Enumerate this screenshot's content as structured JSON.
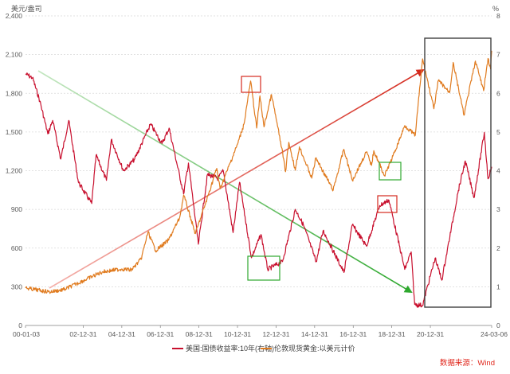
{
  "chart_data": {
    "type": "line",
    "left_unit": "美元/盎司",
    "right_unit": "%",
    "y_left": {
      "min": 0,
      "max": 2400,
      "ticks": [
        "0",
        "300",
        "600",
        "900",
        "1,200",
        "1,500",
        "1,800",
        "2,100",
        "2,400"
      ]
    },
    "y_right": {
      "min": 0,
      "max": 8,
      "ticks": [
        "0",
        "1",
        "2",
        "3",
        "4",
        "5",
        "6",
        "7",
        "8"
      ]
    },
    "x_range": [
      "2000-01-03",
      "2024-03-06"
    ],
    "x_ticks": [
      {
        "label": "00-01-03",
        "date": "2000-01-03"
      },
      {
        "label": "02-12-31",
        "date": "2002-12-31"
      },
      {
        "label": "04-12-31",
        "date": "2004-12-31"
      },
      {
        "label": "06-12-31",
        "date": "2006-12-31"
      },
      {
        "label": "08-12-31",
        "date": "2008-12-31"
      },
      {
        "label": "10-12-31",
        "date": "2010-12-31"
      },
      {
        "label": "12-12-31",
        "date": "2012-12-31"
      },
      {
        "label": "14-12-31",
        "date": "2014-12-31"
      },
      {
        "label": "16-12-31",
        "date": "2016-12-31"
      },
      {
        "label": "18-12-31",
        "date": "2018-12-31"
      },
      {
        "label": "20-12-31",
        "date": "2020-12-31"
      },
      {
        "label": "24-03-06",
        "date": "2024-03-06"
      }
    ],
    "gridlines": "horizontal",
    "legend_position": "bottom",
    "series": [
      {
        "name": "美国:国债收益率:10年(右轴)",
        "axis": "right",
        "color": "#c8102e",
        "points": [
          [
            "2000-01-03",
            6.5
          ],
          [
            "2000-05-15",
            6.4
          ],
          [
            "2000-10-01",
            5.8
          ],
          [
            "2001-03-01",
            4.95
          ],
          [
            "2001-06-01",
            5.3
          ],
          [
            "2001-11-01",
            4.3
          ],
          [
            "2002-04-01",
            5.3
          ],
          [
            "2002-10-01",
            3.7
          ],
          [
            "2003-06-10",
            3.15
          ],
          [
            "2003-09-01",
            4.4
          ],
          [
            "2004-03-15",
            3.75
          ],
          [
            "2004-06-15",
            4.8
          ],
          [
            "2005-02-01",
            4.0
          ],
          [
            "2005-09-01",
            4.3
          ],
          [
            "2006-06-28",
            5.2
          ],
          [
            "2007-02-01",
            4.7
          ],
          [
            "2007-06-15",
            5.1
          ],
          [
            "2008-03-15",
            3.4
          ],
          [
            "2008-06-15",
            4.2
          ],
          [
            "2008-12-20",
            2.1
          ],
          [
            "2009-06-10",
            3.9
          ],
          [
            "2009-12-31",
            3.8
          ],
          [
            "2010-04-05",
            4.0
          ],
          [
            "2010-10-08",
            2.4
          ],
          [
            "2011-02-08",
            3.7
          ],
          [
            "2011-09-22",
            1.75
          ],
          [
            "2012-03-20",
            2.35
          ],
          [
            "2012-07-25",
            1.45
          ],
          [
            "2013-05-01",
            1.65
          ],
          [
            "2013-12-31",
            3.0
          ],
          [
            "2014-06-01",
            2.6
          ],
          [
            "2015-01-30",
            1.65
          ],
          [
            "2015-06-10",
            2.45
          ],
          [
            "2016-07-08",
            1.37
          ],
          [
            "2016-12-15",
            2.6
          ],
          [
            "2017-09-08",
            2.05
          ],
          [
            "2018-05-17",
            3.1
          ],
          [
            "2018-11-08",
            3.24
          ],
          [
            "2019-09-03",
            1.45
          ],
          [
            "2020-01-02",
            1.9
          ],
          [
            "2020-03-09",
            0.54
          ],
          [
            "2020-08-04",
            0.52
          ],
          [
            "2021-03-31",
            1.74
          ],
          [
            "2021-08-04",
            1.17
          ],
          [
            "2022-06-14",
            3.49
          ],
          [
            "2022-10-24",
            4.25
          ],
          [
            "2023-04-06",
            3.3
          ],
          [
            "2023-10-19",
            4.99
          ],
          [
            "2023-12-27",
            3.79
          ],
          [
            "2024-03-06",
            4.1
          ]
        ]
      },
      {
        "name": "伦敦现货黄金:以美元计价",
        "axis": "left",
        "color": "#e07b1f",
        "points": [
          [
            "2000-01-03",
            290
          ],
          [
            "2001-04-01",
            260
          ],
          [
            "2001-12-31",
            278
          ],
          [
            "2002-12-31",
            347
          ],
          [
            "2003-12-31",
            416
          ],
          [
            "2004-12-31",
            438
          ],
          [
            "2005-06-30",
            430
          ],
          [
            "2005-12-30",
            513
          ],
          [
            "2006-05-12",
            725
          ],
          [
            "2006-10-01",
            580
          ],
          [
            "2007-06-01",
            660
          ],
          [
            "2007-12-31",
            834
          ],
          [
            "2008-03-17",
            1011
          ],
          [
            "2008-10-24",
            712
          ],
          [
            "2009-06-01",
            980
          ],
          [
            "2009-12-03",
            1218
          ],
          [
            "2010-02-05",
            1060
          ],
          [
            "2010-12-31",
            1405
          ],
          [
            "2011-05-02",
            1560
          ],
          [
            "2011-09-06",
            1895
          ],
          [
            "2011-12-29",
            1531
          ],
          [
            "2012-02-29",
            1780
          ],
          [
            "2012-05-16",
            1540
          ],
          [
            "2012-10-05",
            1790
          ],
          [
            "2013-04-15",
            1380
          ],
          [
            "2013-06-28",
            1192
          ],
          [
            "2013-08-28",
            1420
          ],
          [
            "2013-12-31",
            1204
          ],
          [
            "2014-03-17",
            1385
          ],
          [
            "2014-11-07",
            1142
          ],
          [
            "2015-01-22",
            1300
          ],
          [
            "2015-12-17",
            1049
          ],
          [
            "2016-07-06",
            1366
          ],
          [
            "2016-12-15",
            1125
          ],
          [
            "2017-09-08",
            1346
          ],
          [
            "2017-12-12",
            1241
          ],
          [
            "2018-01-25",
            1355
          ],
          [
            "2018-08-16",
            1160
          ],
          [
            "2019-02-20",
            1340
          ],
          [
            "2019-09-04",
            1550
          ],
          [
            "2020-03-19",
            1474
          ],
          [
            "2020-08-06",
            2067
          ],
          [
            "2021-03-08",
            1680
          ],
          [
            "2021-06-01",
            1900
          ],
          [
            "2021-12-31",
            1806
          ],
          [
            "2022-03-08",
            2039
          ],
          [
            "2022-09-28",
            1630
          ],
          [
            "2023-05-03",
            2050
          ],
          [
            "2023-10-05",
            1820
          ],
          [
            "2023-12-28",
            2070
          ],
          [
            "2024-02-14",
            1990
          ],
          [
            "2024-03-06",
            2130
          ]
        ]
      }
    ]
  },
  "footer": {
    "source": "数据来源：Wind"
  }
}
